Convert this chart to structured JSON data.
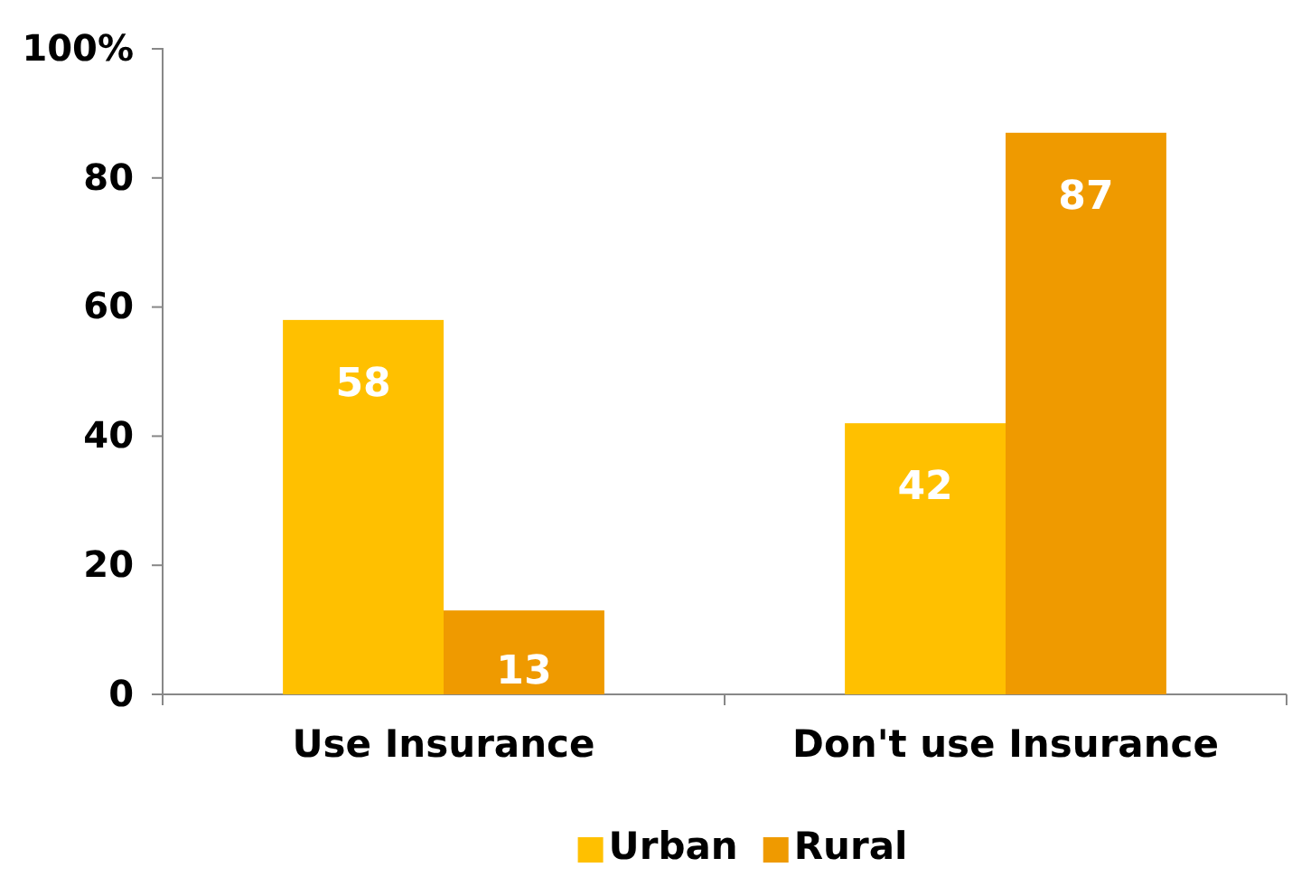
{
  "chart_data": {
    "type": "bar",
    "categories": [
      "Use Insurance",
      "Don't use Insurance"
    ],
    "series": [
      {
        "name": "Urban",
        "color": "#ffc000",
        "values": [
          58,
          42
        ]
      },
      {
        "name": "Rural",
        "color": "#ef9a00",
        "values": [
          13,
          87
        ]
      }
    ],
    "ylim": [
      0,
      100
    ],
    "yticks": [
      0,
      20,
      40,
      60,
      80,
      {
        "value": 100,
        "label": "100%"
      }
    ],
    "data_labels": true,
    "legend": "bottom",
    "grid": false
  }
}
